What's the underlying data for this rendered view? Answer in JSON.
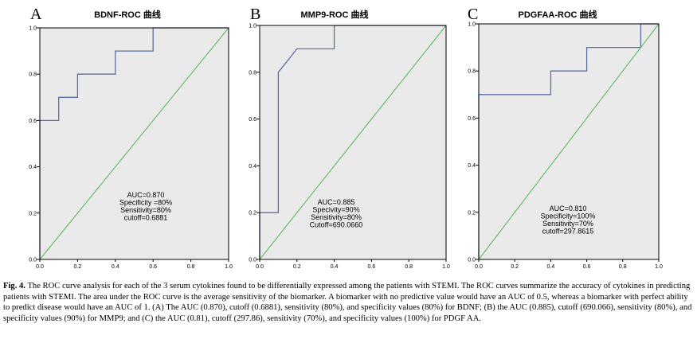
{
  "chart_data": [
    {
      "type": "line",
      "panel": "A",
      "title": "BDNF-ROC 曲线",
      "xlabel": "",
      "ylabel": "",
      "xlim": [
        0,
        1
      ],
      "ylim": [
        0,
        1
      ],
      "x_ticks": [
        "0.0",
        "0.2",
        "0.4",
        "0.6",
        "0.8",
        "1.0"
      ],
      "y_ticks": [
        "0.0",
        "0.2",
        "0.4",
        "0.6",
        "0.8",
        "1.0"
      ],
      "series": [
        {
          "name": "ROC",
          "color": "#5b6fa8",
          "x": [
            0,
            0,
            0.1,
            0.1,
            0.2,
            0.2,
            0.4,
            0.4,
            0.6,
            0.6,
            1.0
          ],
          "y": [
            0,
            0.6,
            0.6,
            0.7,
            0.7,
            0.8,
            0.8,
            0.9,
            0.9,
            1.0,
            1.0
          ]
        },
        {
          "name": "Reference",
          "color": "#5dbb5d",
          "x": [
            0,
            1
          ],
          "y": [
            0,
            1
          ]
        }
      ],
      "annotations": [
        "AUC=0.870",
        "Specificity =80%",
        "Sensitivity=80%",
        "cutoff=0.6881"
      ]
    },
    {
      "type": "line",
      "panel": "B",
      "title": "MMP9-ROC 曲线",
      "xlabel": "",
      "ylabel": "",
      "xlim": [
        0,
        1
      ],
      "ylim": [
        0,
        1
      ],
      "x_ticks": [
        "0.0",
        "0.2",
        "0.4",
        "0.6",
        "0.8",
        "1.0"
      ],
      "y_ticks": [
        "0.0",
        "0.2",
        "0.4",
        "0.6",
        "0.8",
        "1.0"
      ],
      "series": [
        {
          "name": "ROC",
          "color": "#5b6fa8",
          "x": [
            0,
            0,
            0.1,
            0.1,
            0.2,
            0.2,
            0.4,
            0.4,
            1.0
          ],
          "y": [
            0,
            0.2,
            0.2,
            0.8,
            0.9,
            0.9,
            0.9,
            1.0,
            1.0
          ]
        },
        {
          "name": "Reference",
          "color": "#5dbb5d",
          "x": [
            0,
            1
          ],
          "y": [
            0,
            1
          ]
        }
      ],
      "annotations": [
        "AUC=0.885",
        "Specivity=90%",
        "Sensitivity=80%",
        "Cutoff=690.0660"
      ]
    },
    {
      "type": "line",
      "panel": "C",
      "title": "PDGFAA-ROC 曲线",
      "xlabel": "",
      "ylabel": "",
      "xlim": [
        0,
        1
      ],
      "ylim": [
        0,
        1
      ],
      "x_ticks": [
        "0.0",
        "0.2",
        "0.4",
        "0.6",
        "0.8",
        "1.0"
      ],
      "y_ticks": [
        "0.0",
        "0.2",
        "0.4",
        "0.6",
        "0.8",
        "1.0"
      ],
      "series": [
        {
          "name": "ROC",
          "color": "#5b6fa8",
          "x": [
            0,
            0,
            0.4,
            0.4,
            0.6,
            0.6,
            0.9,
            0.9,
            1.0
          ],
          "y": [
            0,
            0.7,
            0.7,
            0.8,
            0.8,
            0.9,
            0.9,
            1.0,
            1.0
          ]
        },
        {
          "name": "Reference",
          "color": "#5dbb5d",
          "x": [
            0,
            1
          ],
          "y": [
            0,
            1
          ]
        }
      ],
      "annotations": [
        "AUC=0.810",
        "Specificity=100%",
        "Sensitivity=70%",
        "cutoff=297.8615"
      ]
    }
  ],
  "caption": {
    "label": "Fig. 4.",
    "text": "The ROC curve analysis for each of the 3 serum cytokines found to be differentially expressed among the patients with STEMI. The ROC curves summarize the accuracy of cytokines in predicting patients with STEMI. The area under the ROC curve is the average sensitivity of the biomarker. A biomarker with no predictive value would have an AUC of 0.5, whereas a biomarker with perfect ability to predict disease would have an AUC of 1. (A) The AUC (0.870), cutoff (0.6881), sensitivity (80%), and specificity values (80%) for BDNF; (B) the AUC (0.885), cutoff (690.066), sensitivity (80%), and specificity values (90%) for MMP9; and (C) the AUC (0.81), cutoff (297.86), sensitivity (70%), and specificity values (100%) for PDGF AA."
  }
}
